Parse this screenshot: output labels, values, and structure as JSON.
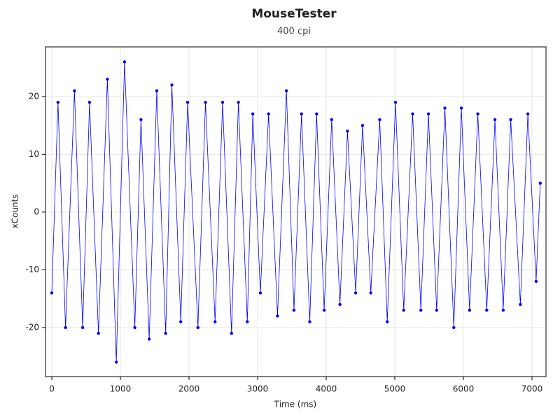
{
  "chart_data": {
    "type": "line",
    "title": "MouseTester",
    "subtitle": "400 cpi",
    "x_label": "Time (ms)",
    "y_label": "xCounts",
    "xlim": [
      -92,
      7204
    ],
    "ylim": [
      -28.5,
      28.6
    ],
    "xticks": [
      0,
      1000,
      2000,
      3000,
      4000,
      5000,
      6000,
      7000
    ],
    "yticks": [
      -20,
      -10,
      0,
      10,
      20
    ],
    "grid": true,
    "markers": true,
    "series": [
      {
        "color": "#0000ff",
        "x": [
          0,
          90,
          200,
          330,
          450,
          550,
          680,
          810,
          940,
          1060,
          1210,
          1300,
          1420,
          1530,
          1660,
          1750,
          1880,
          1980,
          2130,
          2240,
          2380,
          2490,
          2620,
          2720,
          2850,
          2930,
          3040,
          3160,
          3290,
          3420,
          3530,
          3640,
          3760,
          3860,
          3970,
          4080,
          4200,
          4310,
          4430,
          4530,
          4650,
          4780,
          4890,
          5010,
          5130,
          5260,
          5380,
          5490,
          5610,
          5730,
          5860,
          5970,
          6090,
          6210,
          6340,
          6460,
          6580,
          6690,
          6830,
          6940,
          7060,
          7120
        ],
        "values": [
          -14,
          19,
          -20,
          21,
          -20,
          19,
          -21,
          23,
          -26,
          26,
          -20,
          16,
          -22,
          21,
          -21,
          22,
          -19,
          19,
          -20,
          19,
          -19,
          19,
          -21,
          19,
          -19,
          17,
          -14,
          17,
          -18,
          21,
          -17,
          17,
          -19,
          17,
          -17,
          16,
          -16,
          14,
          -14,
          15,
          -14,
          16,
          -19,
          19,
          -17,
          17,
          -17,
          17,
          -17,
          18,
          -20,
          18,
          -17,
          17,
          -17,
          16,
          -17,
          16,
          -16,
          17,
          -12,
          5
        ]
      }
    ]
  }
}
